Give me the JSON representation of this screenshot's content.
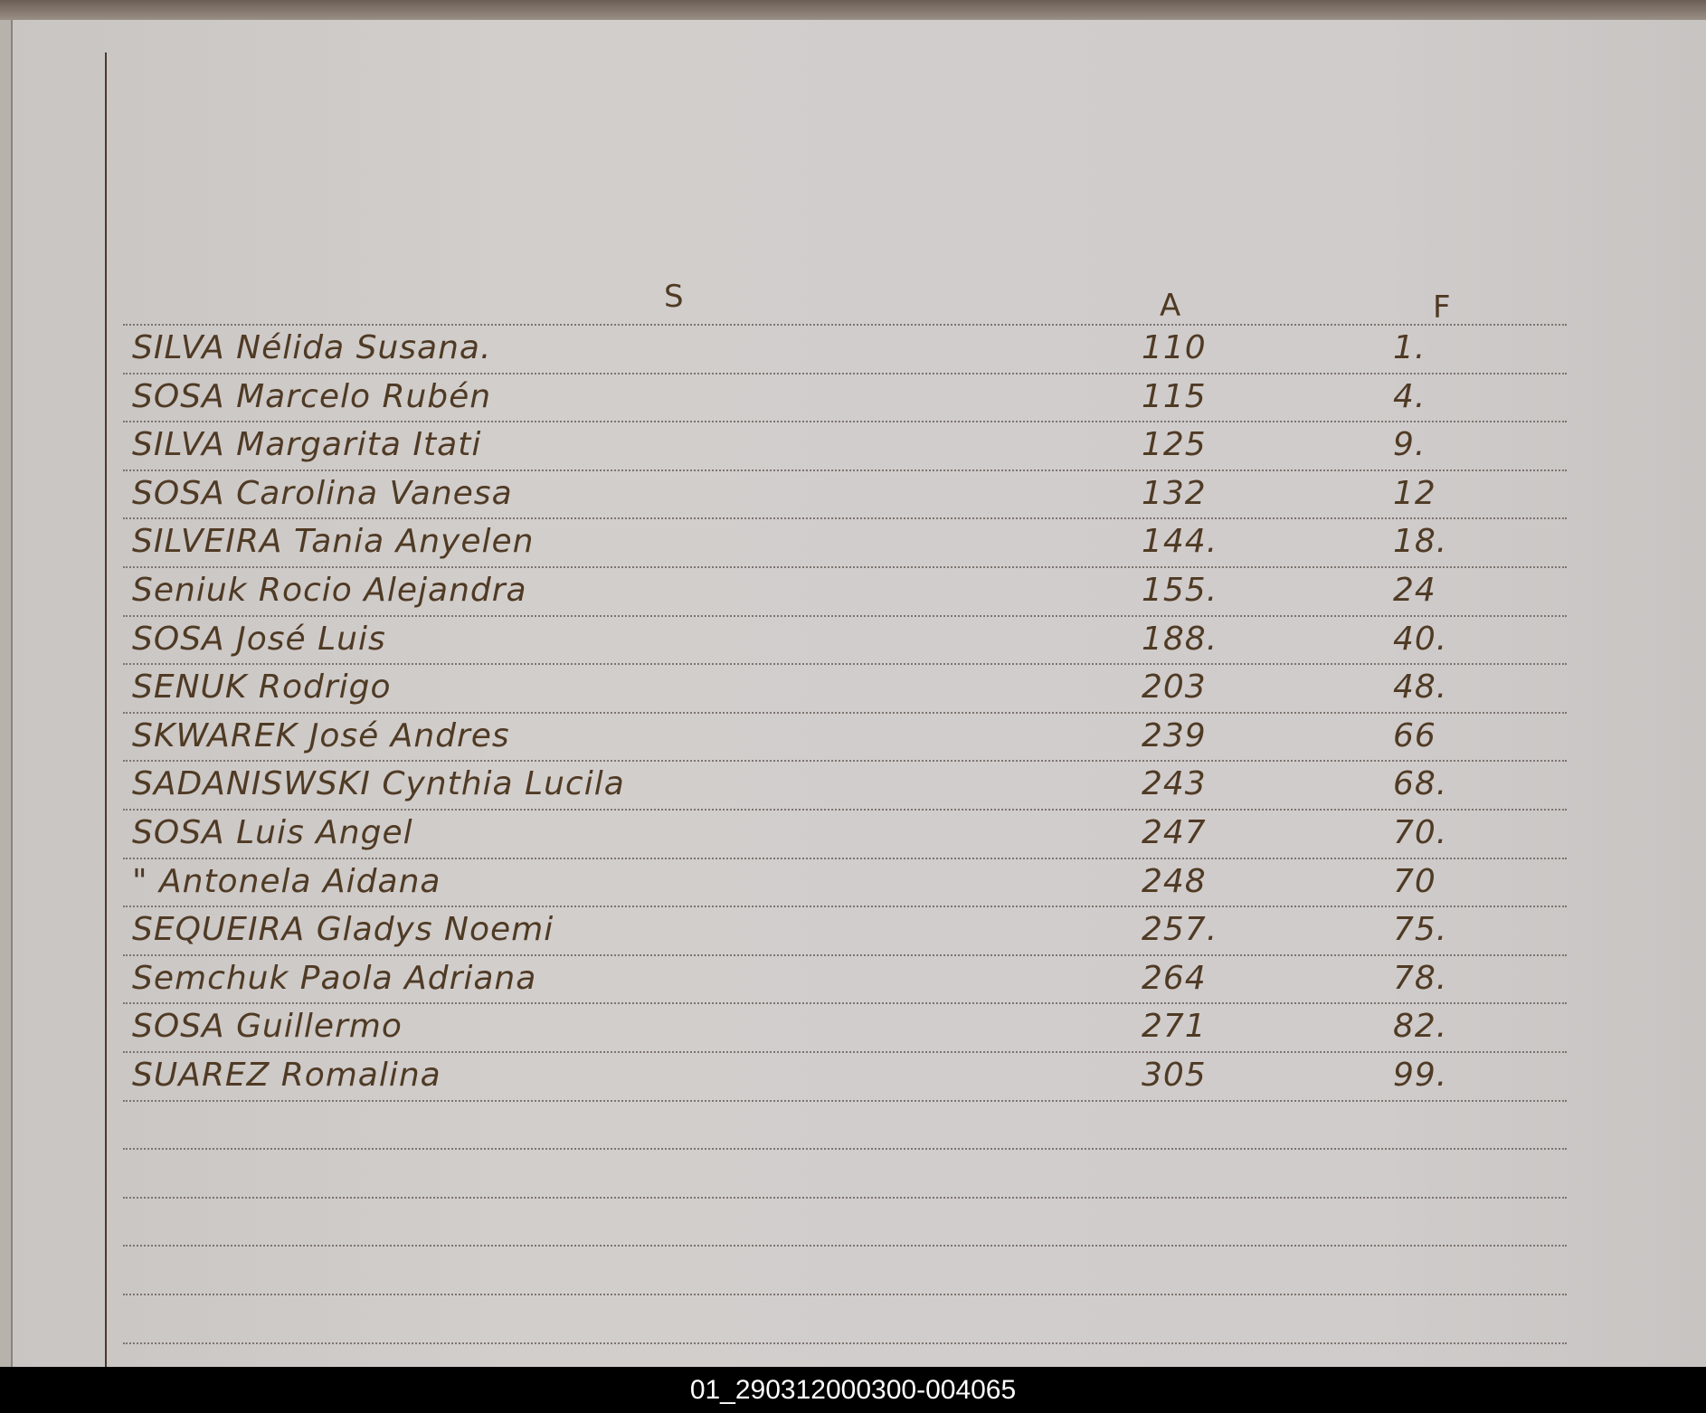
{
  "document": {
    "section_letter": "S",
    "column_headers": {
      "a": "A",
      "f": "F"
    },
    "entries": [
      {
        "name": "SILVA Nélida Susana.",
        "a": "110",
        "f": "1."
      },
      {
        "name": "SOSA Marcelo Rubén",
        "a": "115",
        "f": "4."
      },
      {
        "name": "SILVA Margarita Itati",
        "a": "125",
        "f": "9."
      },
      {
        "name": "SOSA Carolina Vanesa",
        "a": "132",
        "f": "12"
      },
      {
        "name": "SILVEIRA Tania Anyelen",
        "a": "144.",
        "f": "18."
      },
      {
        "name": "Seniuk Rocio Alejandra",
        "a": "155.",
        "f": "24"
      },
      {
        "name": "SOSA José Luis",
        "a": "188.",
        "f": "40."
      },
      {
        "name": "SENUK Rodrigo",
        "a": "203",
        "f": "48."
      },
      {
        "name": "SKWAREK José Andres",
        "a": "239",
        "f": "66"
      },
      {
        "name": "SADANISWSKI Cynthia Lucila",
        "a": "243",
        "f": "68."
      },
      {
        "name": "SOSA Luis Angel",
        "a": "247",
        "f": "70."
      },
      {
        "name": "\"  Antonela Aidana",
        "a": "248",
        "f": "70"
      },
      {
        "name": "SEQUEIRA Gladys Noemi",
        "a": "257.",
        "f": "75."
      },
      {
        "name": "Semchuk Paola Adriana",
        "a": "264",
        "f": "78."
      },
      {
        "name": "SOSA Guillermo",
        "a": "271",
        "f": "82."
      },
      {
        "name": "SUAREZ Romalina",
        "a": "305",
        "f": "99."
      }
    ]
  },
  "footer": {
    "image_id_label": "01_290312000300-004065"
  },
  "colors": {
    "ink": "#4f3a24",
    "paper": "#cdc9c6",
    "footer_bg": "#000000"
  }
}
